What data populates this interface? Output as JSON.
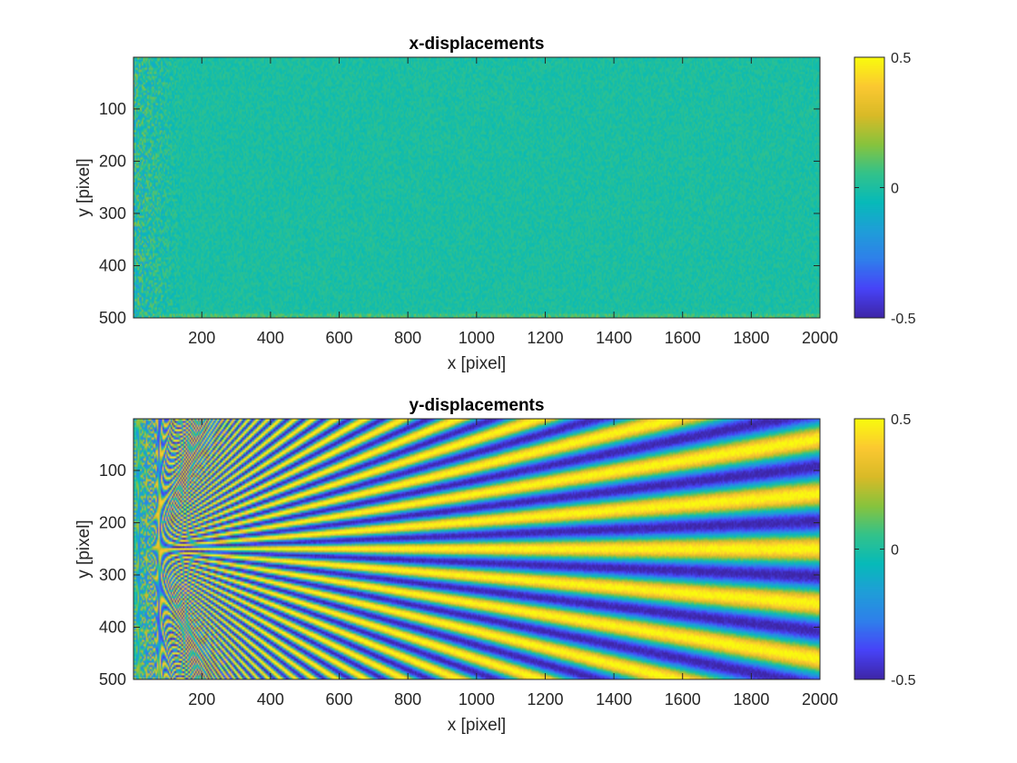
{
  "chart_data": [
    {
      "type": "heatmap",
      "title": "x-displacements",
      "xlabel": "x [pixel]",
      "ylabel": "y [pixel]",
      "xlim": [
        1,
        2000
      ],
      "ylim": [
        1,
        500
      ],
      "y_direction": "reversed",
      "x_ticks": [
        "200",
        "400",
        "600",
        "800",
        "1000",
        "1200",
        "1400",
        "1600",
        "1800",
        "2000"
      ],
      "y_ticks": [
        "100",
        "200",
        "300",
        "400",
        "500"
      ],
      "colorbar": {
        "clim": [
          -0.5,
          0.5
        ],
        "ticks": [
          "-0.5",
          "0",
          "0.5"
        ],
        "colormap": "parula"
      },
      "pattern": "near-zero noise field, approx 0 everywhere, noisier for x < 150"
    },
    {
      "type": "heatmap",
      "title": "y-displacements",
      "xlabel": "x [pixel]",
      "ylabel": "y [pixel]",
      "xlim": [
        1,
        2000
      ],
      "ylim": [
        1,
        500
      ],
      "y_direction": "reversed",
      "x_ticks": [
        "200",
        "400",
        "600",
        "800",
        "1000",
        "1200",
        "1400",
        "1600",
        "1800",
        "2000"
      ],
      "y_ticks": [
        "100",
        "200",
        "300",
        "400",
        "500"
      ],
      "colorbar": {
        "clim": [
          -0.5,
          0.5
        ],
        "ticks": [
          "-0.5",
          "0",
          "0.5"
        ],
        "colormap": "parula"
      },
      "pattern": "radial fringes diverging from (0, 250); value about 0.5*cos(2*pi*(y-250)*19/x)"
    }
  ],
  "colors": {
    "parula": [
      "#3e26a8",
      "#4743f8",
      "#2f7feb",
      "#1f9ed8",
      "#07bab9",
      "#33c28a",
      "#88c33d",
      "#d9ba27",
      "#fbc831",
      "#f9fb0e"
    ],
    "axis": "#262626"
  }
}
